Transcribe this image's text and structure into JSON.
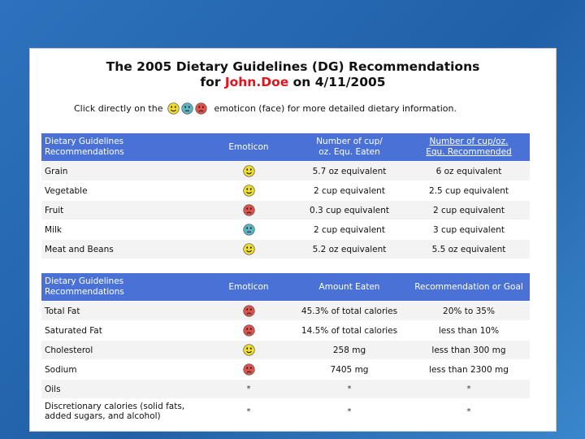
{
  "title": {
    "line1": "The 2005 Dietary Guidelines (DG) Recommendations",
    "line2_prefix": "for ",
    "name": "John.Doe",
    "line2_suffix": " on 4/11/2005"
  },
  "instruction": {
    "before": "Click directly on the",
    "after": "emoticon (face) for more detailed dietary information."
  },
  "colors": {
    "header_bg": "#4a72d6",
    "happy": "#f0dd2a",
    "neutral": "#5bb6c4",
    "sad": "#e0524c",
    "name": "#e0141b"
  },
  "table1": {
    "headers": {
      "col1": "Dietary Guidelines\nRecommendations",
      "col2": "Emoticon",
      "col3": "Number of cup/\noz. Equ. Eaten",
      "col4": "Number of cup/oz.\nEqu. Recommended"
    },
    "rows": [
      {
        "label": "Grain",
        "face": "happy",
        "eaten": "5.7 oz equivalent",
        "recommended": "6 oz equivalent"
      },
      {
        "label": "Vegetable",
        "face": "happy",
        "eaten": "2 cup equivalent",
        "recommended": "2.5 cup equivalent"
      },
      {
        "label": "Fruit",
        "face": "sad",
        "eaten": "0.3 cup equivalent",
        "recommended": "2 cup equivalent"
      },
      {
        "label": "Milk",
        "face": "neutral",
        "eaten": "2 cup equivalent",
        "recommended": "3 cup equivalent"
      },
      {
        "label": "Meat and Beans",
        "face": "happy",
        "eaten": "5.2 oz equivalent",
        "recommended": "5.5 oz equivalent"
      }
    ]
  },
  "table2": {
    "headers": {
      "col1": "Dietary Guidelines\nRecommendations",
      "col2": "Emoticon",
      "col3": "Amount Eaten",
      "col4": "Recommendation or Goal"
    },
    "rows": [
      {
        "label": "Total Fat",
        "face": "sad",
        "eaten": "45.3% of total calories",
        "recommended": "20% to 35%"
      },
      {
        "label": "Saturated Fat",
        "face": "sad",
        "eaten": "14.5% of total calories",
        "recommended": "less than 10%"
      },
      {
        "label": "Cholesterol",
        "face": "happy",
        "eaten": "258 mg",
        "recommended": "less than 300 mg"
      },
      {
        "label": "Sodium",
        "face": "sad",
        "eaten": "7405 mg",
        "recommended": "less than 2300 mg"
      },
      {
        "label": "Oils",
        "face": "none",
        "emoticon": "*",
        "eaten": "*",
        "recommended": "*"
      },
      {
        "label": "Discretionary calories (solid fats,\nadded sugars, and alcohol)",
        "face": "none",
        "emoticon": "*",
        "eaten": "*",
        "recommended": "*"
      }
    ]
  }
}
